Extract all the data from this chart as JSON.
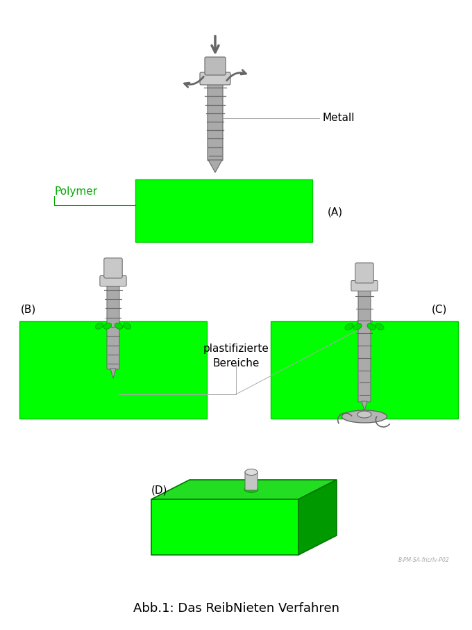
{
  "title": "Abb.1: Das ReibNieten Verfahren",
  "title_fontsize": 13,
  "background_color": "#ffffff",
  "green_bright": "#00ff00",
  "green_mid": "#22dd22",
  "green_dark": "#009900",
  "gray_light": "#cccccc",
  "gray_med": "#aaaaaa",
  "gray_dark": "#666666",
  "gray_edge": "#888888",
  "label_A": "(A)",
  "label_B": "(B)",
  "label_C": "(C)",
  "label_D": "(D)",
  "label_metall": "Metall",
  "label_polymer": "Polymer",
  "label_plastifizierte": "plastifizierte\nBereiche",
  "label_watermark": "B-PM-SA-fricrlv-P02",
  "text_green": "#00aa00",
  "text_black": "#000000",
  "arrow_down_color": "#666666"
}
